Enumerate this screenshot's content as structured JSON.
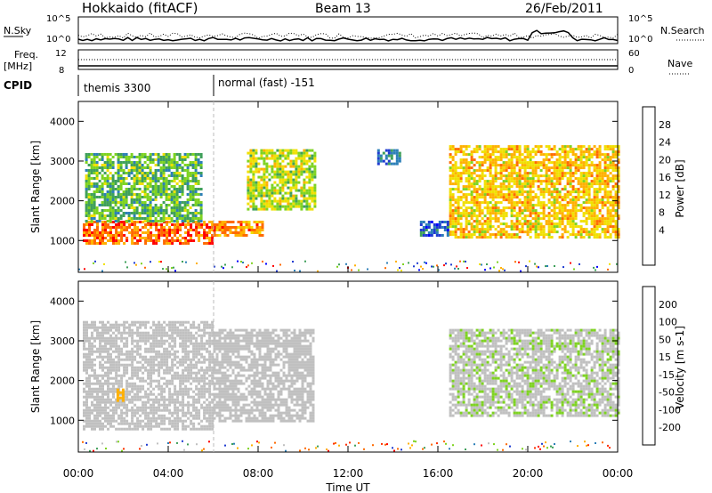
{
  "header": {
    "station": "Hokkaido (fitACF)",
    "beam": "Beam 13",
    "date": "26/Feb/2011"
  },
  "top_panels": {
    "nsky_label": "N.Sky",
    "nsky_ticks": [
      "10^5",
      "10^0"
    ],
    "nsearch_label": "N.Search",
    "nsearch_ticks": [
      "10^5",
      "10^0"
    ],
    "freq_label": "Freq.",
    "freq_unit": "[MHz]",
    "freq_ticks": [
      "12",
      "8"
    ],
    "nave_label": "Nave",
    "nave_ticks": [
      "60",
      "0"
    ],
    "cpid_label": "CPID",
    "cpid_modes": [
      "themis 3300",
      "normal (fast) -151"
    ]
  },
  "x_axis": {
    "label": "Time UT",
    "ticks": [
      "00:00",
      "04:00",
      "08:00",
      "12:00",
      "16:00",
      "20:00",
      "00:00"
    ]
  },
  "chart_data": [
    {
      "type": "heatmap",
      "title": "",
      "xlabel": "Time UT",
      "ylabel": "Slant Range [km]",
      "xlim": [
        0,
        24
      ],
      "ylim": [
        200,
        4500
      ],
      "y_ticks": [
        "1000",
        "2000",
        "3000",
        "4000"
      ],
      "colorbar": {
        "label": "Power [dB]",
        "ticks": [
          "28",
          "24",
          "20",
          "16",
          "12",
          "8",
          "4"
        ],
        "colors": [
          "#ff0000",
          "#ff6a00",
          "#ffb000",
          "#f0e000",
          "#7ed321",
          "#3fa05a",
          "#2c7fb8",
          "#1f3bd1",
          "#0000ff"
        ]
      },
      "regions": [
        {
          "t": [
            0.2,
            6.0
          ],
          "r": [
            900,
            1500
          ],
          "value": 28
        },
        {
          "t": [
            6.0,
            8.2
          ],
          "r": [
            1100,
            1500
          ],
          "value": 26
        },
        {
          "t": [
            0.3,
            5.5
          ],
          "r": [
            1500,
            3200
          ],
          "value": 14
        },
        {
          "t": [
            7.5,
            10.5
          ],
          "r": [
            1800,
            3300
          ],
          "value": 18
        },
        {
          "t": [
            16.5,
            24.0
          ],
          "r": [
            1100,
            3400
          ],
          "value": 22
        },
        {
          "t": [
            13.3,
            14.3
          ],
          "r": [
            2900,
            3300
          ],
          "value": 8
        },
        {
          "t": [
            15.2,
            16.5
          ],
          "r": [
            1100,
            1500
          ],
          "value": 6
        }
      ]
    },
    {
      "type": "heatmap",
      "title": "",
      "xlabel": "Time UT",
      "ylabel": "Slant Range [km]",
      "xlim": [
        0,
        24
      ],
      "ylim": [
        200,
        4500
      ],
      "y_ticks": [
        "1000",
        "2000",
        "3000",
        "4000"
      ],
      "colorbar": {
        "label": "Velocity [m s-1]",
        "ticks": [
          "200",
          "100",
          "50",
          "15",
          "-15",
          "-50",
          "-100",
          "-200"
        ],
        "colors": [
          "#1f3bd1",
          "#2c7fb8",
          "#3fa05a",
          "#7ed321",
          "#c0c0c0",
          "#ffb000",
          "#ff6a00",
          "#ff3000",
          "#ff0000"
        ]
      },
      "regions": [
        {
          "t": [
            0.2,
            6.0
          ],
          "r": [
            800,
            3500
          ],
          "value": 0
        },
        {
          "t": [
            6.0,
            10.5
          ],
          "r": [
            1000,
            3300
          ],
          "value": 0
        },
        {
          "t": [
            16.5,
            24.0
          ],
          "r": [
            1100,
            3300
          ],
          "value": 20
        },
        {
          "t": [
            1.7,
            2.0
          ],
          "r": [
            1500,
            1800
          ],
          "value": -60
        }
      ]
    }
  ]
}
